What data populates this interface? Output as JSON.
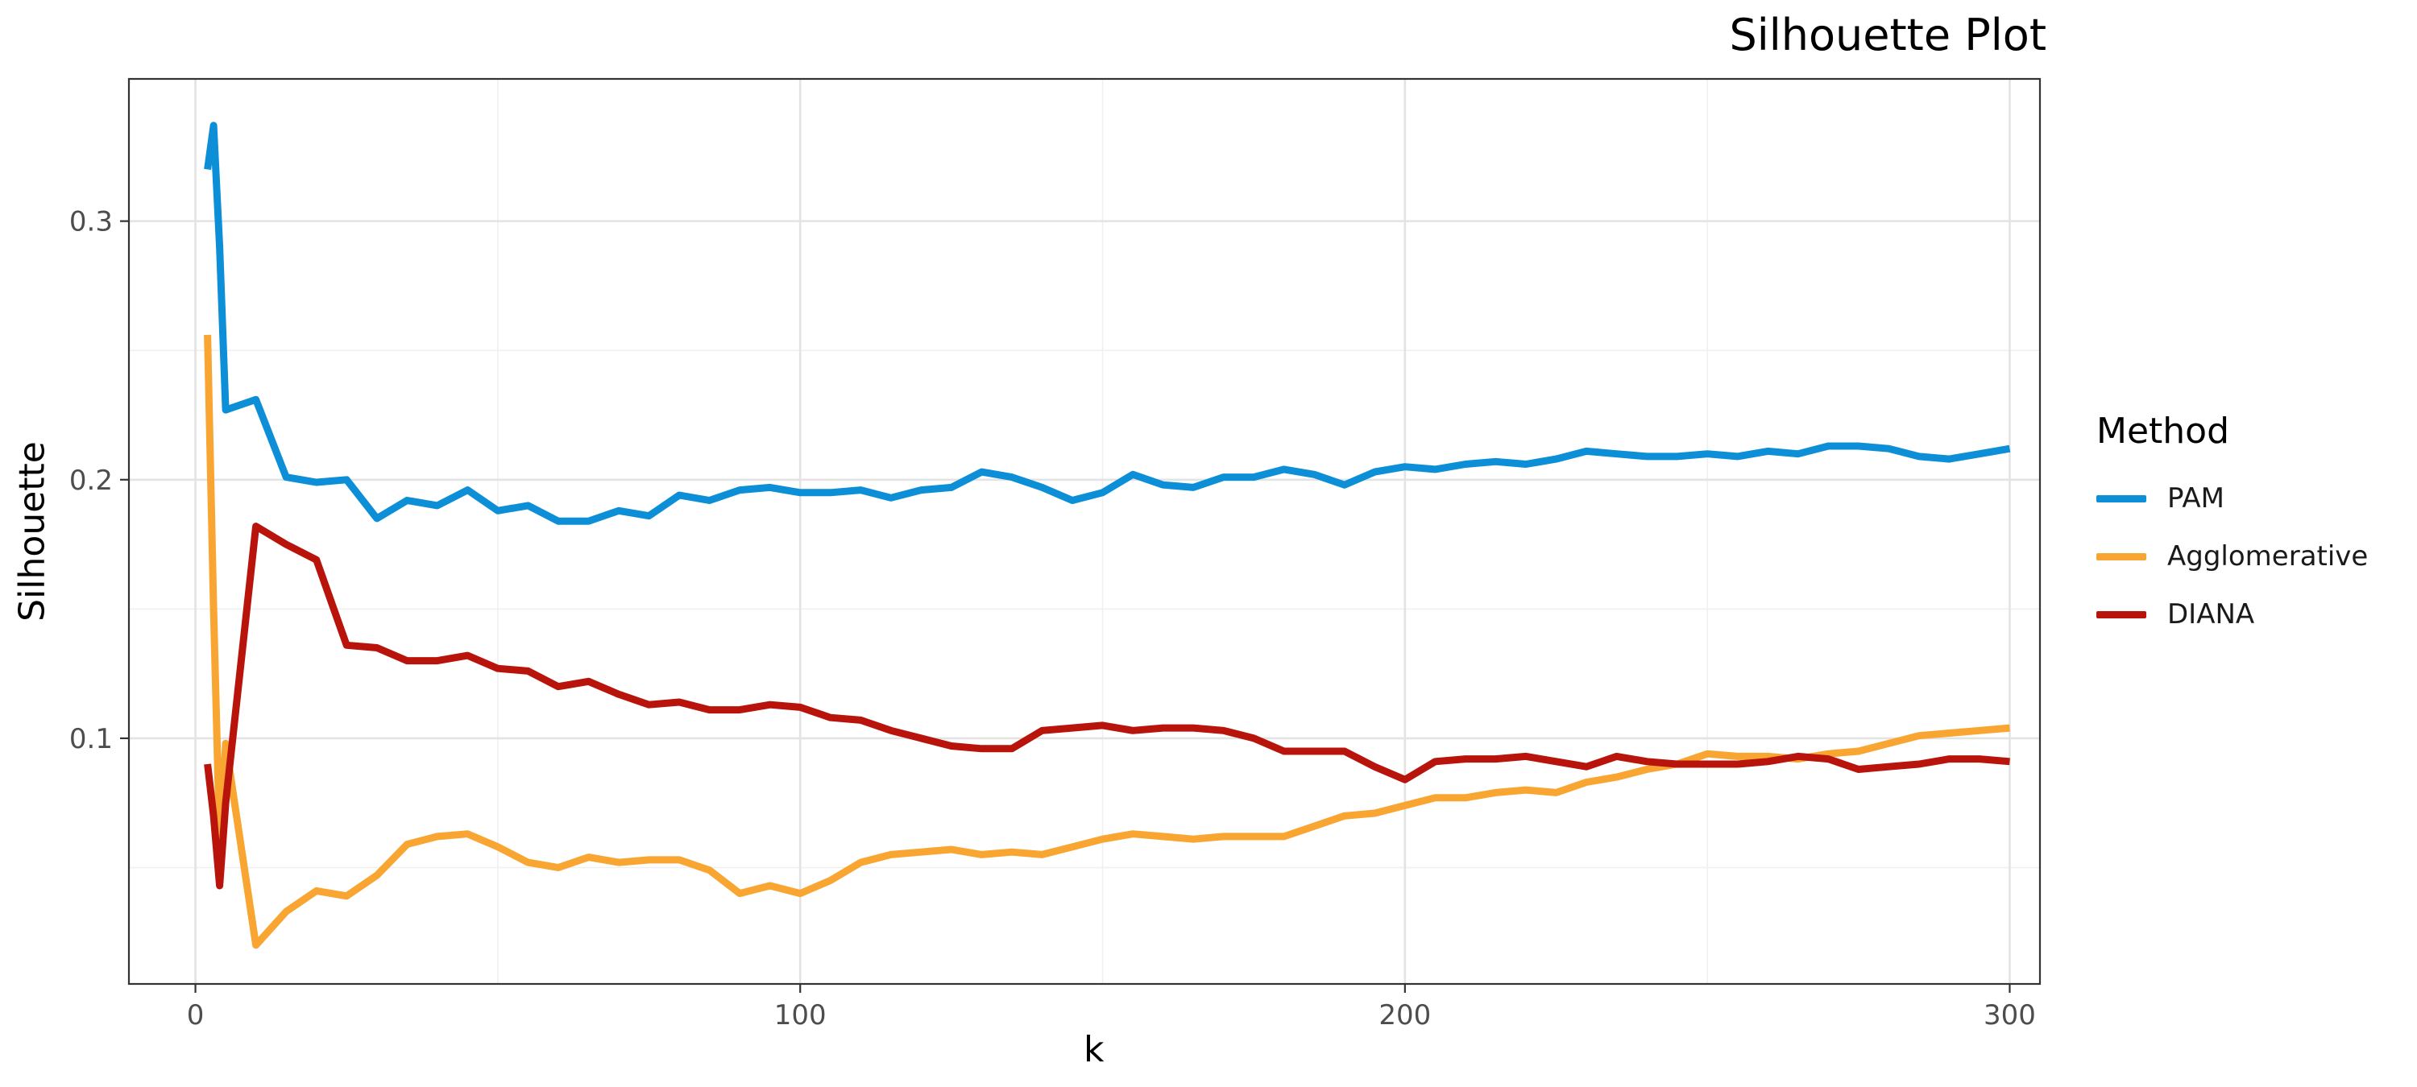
{
  "chart_data": {
    "type": "line",
    "title": "Silhouette Plot",
    "xlabel": "k",
    "ylabel": "Silhouette",
    "xlim": [
      -11,
      305
    ],
    "ylim": [
      0.005,
      0.355
    ],
    "x_ticks": [
      0,
      100,
      200,
      300
    ],
    "x_tick_labels": [
      "0",
      "100",
      "200",
      "300"
    ],
    "y_ticks": [
      0.1,
      0.2,
      0.3
    ],
    "y_tick_labels": [
      "0.1",
      "0.2",
      "0.3"
    ],
    "x_minor": [
      50,
      150,
      250
    ],
    "y_minor": [
      0.05,
      0.15,
      0.25
    ],
    "grid": true,
    "legend": {
      "title": "Method",
      "position": "right"
    },
    "x": [
      2,
      3,
      4,
      5,
      10,
      15,
      20,
      25,
      30,
      35,
      40,
      45,
      50,
      55,
      60,
      65,
      70,
      75,
      80,
      85,
      90,
      95,
      100,
      105,
      110,
      115,
      120,
      125,
      130,
      135,
      140,
      145,
      150,
      155,
      160,
      165,
      170,
      175,
      180,
      185,
      190,
      195,
      200,
      205,
      210,
      215,
      220,
      225,
      230,
      235,
      240,
      245,
      250,
      255,
      260,
      265,
      270,
      275,
      280,
      285,
      290,
      295,
      300
    ],
    "series": [
      {
        "name": "PAM",
        "color": "#0d8fd8",
        "values": [
          0.32,
          0.337,
          0.29,
          0.227,
          0.231,
          0.201,
          0.199,
          0.2,
          0.185,
          0.192,
          0.19,
          0.196,
          0.188,
          0.19,
          0.184,
          0.184,
          0.188,
          0.186,
          0.194,
          0.192,
          0.196,
          0.197,
          0.195,
          0.195,
          0.196,
          0.193,
          0.196,
          0.197,
          0.203,
          0.201,
          0.197,
          0.192,
          0.195,
          0.202,
          0.198,
          0.197,
          0.201,
          0.201,
          0.204,
          0.202,
          0.198,
          0.203,
          0.205,
          0.204,
          0.206,
          0.207,
          0.206,
          0.208,
          0.211,
          0.21,
          0.209,
          0.209,
          0.21,
          0.209,
          0.211,
          0.21,
          0.213,
          0.213,
          0.212,
          0.209,
          0.208,
          0.21,
          0.212
        ]
      },
      {
        "name": "Agglomerative",
        "color": "#f8a532",
        "values": [
          0.256,
          0.15,
          0.06,
          0.098,
          0.02,
          0.033,
          0.041,
          0.039,
          0.047,
          0.059,
          0.062,
          0.063,
          0.058,
          0.052,
          0.05,
          0.054,
          0.052,
          0.053,
          0.053,
          0.049,
          0.04,
          0.043,
          0.04,
          0.045,
          0.052,
          0.055,
          0.056,
          0.057,
          0.055,
          0.056,
          0.055,
          0.058,
          0.061,
          0.063,
          0.062,
          0.061,
          0.062,
          0.062,
          0.062,
          0.066,
          0.07,
          0.071,
          0.074,
          0.077,
          0.077,
          0.079,
          0.08,
          0.079,
          0.083,
          0.085,
          0.088,
          0.09,
          0.094,
          0.093,
          0.093,
          0.092,
          0.094,
          0.095,
          0.098,
          0.101,
          0.102,
          0.103,
          0.104
        ]
      },
      {
        "name": "DIANA",
        "color": "#b8140b",
        "values": [
          0.09,
          0.07,
          0.043,
          0.075,
          0.182,
          0.175,
          0.169,
          0.136,
          0.135,
          0.13,
          0.13,
          0.132,
          0.127,
          0.126,
          0.12,
          0.122,
          0.117,
          0.113,
          0.114,
          0.111,
          0.111,
          0.113,
          0.112,
          0.108,
          0.107,
          0.103,
          0.1,
          0.097,
          0.096,
          0.096,
          0.103,
          0.104,
          0.105,
          0.103,
          0.104,
          0.104,
          0.103,
          0.1,
          0.095,
          0.095,
          0.095,
          0.089,
          0.084,
          0.091,
          0.092,
          0.092,
          0.093,
          0.091,
          0.089,
          0.093,
          0.091,
          0.09,
          0.09,
          0.09,
          0.091,
          0.093,
          0.092,
          0.088,
          0.089,
          0.09,
          0.092,
          0.092,
          0.091
        ]
      }
    ]
  }
}
